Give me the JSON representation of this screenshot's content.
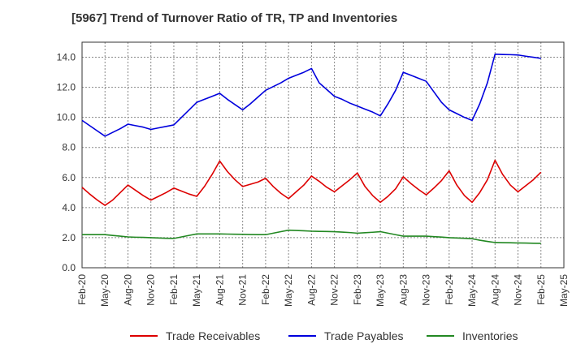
{
  "chart_data": {
    "type": "line",
    "title": "[5967]  Trend of Turnover Ratio of TR, TP and Inventories",
    "xlabel": "",
    "ylabel": "",
    "ylim": [
      0,
      15
    ],
    "yticks": [
      "0.0",
      "2.0",
      "4.0",
      "6.0",
      "8.0",
      "10.0",
      "12.0",
      "14.0"
    ],
    "x_ticks": [
      "Feb-20",
      "May-20",
      "Aug-20",
      "Nov-20",
      "Feb-21",
      "May-21",
      "Aug-21",
      "Nov-21",
      "Feb-22",
      "May-22",
      "Aug-22",
      "Nov-22",
      "Feb-23",
      "May-23",
      "Aug-23",
      "Nov-23",
      "Feb-24",
      "May-24",
      "Aug-24",
      "Nov-24",
      "Feb-25",
      "May-25"
    ],
    "x": [
      "Feb-20",
      "Mar-20",
      "Apr-20",
      "May-20",
      "Jun-20",
      "Jul-20",
      "Aug-20",
      "Sep-20",
      "Oct-20",
      "Nov-20",
      "Dec-20",
      "Jan-21",
      "Feb-21",
      "Mar-21",
      "Apr-21",
      "May-21",
      "Jun-21",
      "Jul-21",
      "Aug-21",
      "Sep-21",
      "Oct-21",
      "Nov-21",
      "Dec-21",
      "Jan-22",
      "Feb-22",
      "Mar-22",
      "Apr-22",
      "May-22",
      "Jun-22",
      "Jul-22",
      "Aug-22",
      "Sep-22",
      "Oct-22",
      "Nov-22",
      "Dec-22",
      "Jan-23",
      "Feb-23",
      "Mar-23",
      "Apr-23",
      "May-23",
      "Jun-23",
      "Jul-23",
      "Aug-23",
      "Sep-23",
      "Oct-23",
      "Nov-23",
      "Dec-23",
      "Jan-24",
      "Feb-24",
      "Mar-24",
      "Apr-24",
      "May-24",
      "Jun-24",
      "Jul-24",
      "Aug-24",
      "Sep-24",
      "Oct-24",
      "Nov-24",
      "Dec-24",
      "Jan-25",
      "Feb-25"
    ],
    "grid": true,
    "legend_position": "bottom",
    "series": [
      {
        "name": "Trade Receivables",
        "color": "#dd0000",
        "values": [
          5.35,
          4.9,
          4.5,
          4.15,
          4.5,
          5.0,
          5.5,
          5.15,
          4.8,
          4.5,
          4.75,
          5.0,
          5.3,
          5.1,
          4.9,
          4.75,
          5.4,
          6.2,
          7.1,
          6.4,
          5.85,
          5.4,
          5.55,
          5.7,
          5.95,
          5.4,
          4.95,
          4.6,
          5.05,
          5.5,
          6.1,
          5.75,
          5.35,
          5.05,
          5.45,
          5.85,
          6.3,
          5.4,
          4.8,
          4.35,
          4.75,
          5.25,
          6.05,
          5.6,
          5.2,
          4.85,
          5.3,
          5.8,
          6.45,
          5.5,
          4.8,
          4.35,
          5.0,
          5.85,
          7.15,
          6.2,
          5.5,
          5.05,
          5.45,
          5.85,
          6.35
        ]
      },
      {
        "name": "Trade Payables",
        "color": "#0000dd",
        "values": [
          9.8,
          9.45,
          9.1,
          8.75,
          9.0,
          9.25,
          9.55,
          9.45,
          9.35,
          9.2,
          9.3,
          9.4,
          9.5,
          10.0,
          10.5,
          11.0,
          11.2,
          11.4,
          11.6,
          11.2,
          10.85,
          10.5,
          10.9,
          11.35,
          11.8,
          12.05,
          12.3,
          12.6,
          12.8,
          13.0,
          13.25,
          12.3,
          11.85,
          11.4,
          11.2,
          10.95,
          10.75,
          10.55,
          10.35,
          10.1,
          10.9,
          11.8,
          13.0,
          12.8,
          12.6,
          12.4,
          11.7,
          11.0,
          10.5,
          10.25,
          10.0,
          9.8,
          10.9,
          12.3,
          14.2,
          14.18,
          14.17,
          14.15,
          14.07,
          14.0,
          13.92
        ]
      },
      {
        "name": "Inventories",
        "color": "#228822",
        "values": [
          2.2,
          2.2,
          2.2,
          2.2,
          2.15,
          2.1,
          2.05,
          2.03,
          2.02,
          2.0,
          1.98,
          1.96,
          1.95,
          2.05,
          2.15,
          2.25,
          2.25,
          2.25,
          2.25,
          2.24,
          2.23,
          2.22,
          2.21,
          2.2,
          2.2,
          2.3,
          2.4,
          2.5,
          2.48,
          2.46,
          2.43,
          2.42,
          2.41,
          2.4,
          2.37,
          2.34,
          2.3,
          2.33,
          2.36,
          2.4,
          2.3,
          2.2,
          2.1,
          2.1,
          2.1,
          2.1,
          2.07,
          2.04,
          2.0,
          1.98,
          1.96,
          1.93,
          1.83,
          1.75,
          1.68,
          1.67,
          1.66,
          1.65,
          1.64,
          1.63,
          1.62
        ]
      }
    ]
  }
}
